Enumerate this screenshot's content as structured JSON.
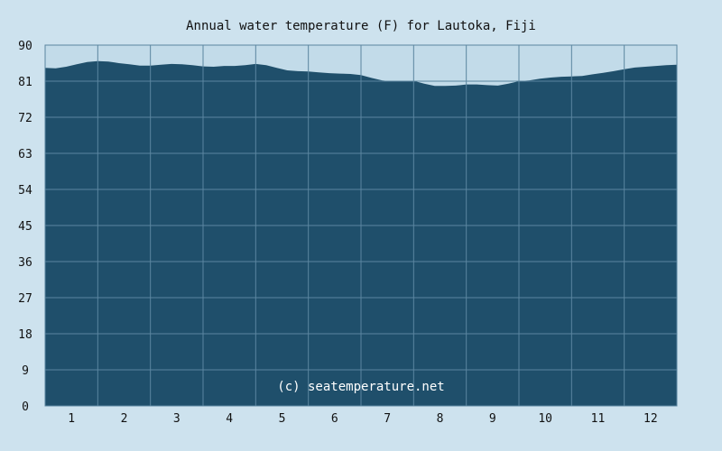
{
  "chart_data": {
    "type": "area",
    "title": "Annual water temperature (F) for Lautoka, Fiji",
    "watermark": "(c) seatemperature.net",
    "categories": [
      "1",
      "2",
      "3",
      "4",
      "5",
      "6",
      "7",
      "8",
      "9",
      "10",
      "11",
      "12"
    ],
    "yticks": [
      "0",
      "9",
      "18",
      "27",
      "36",
      "45",
      "54",
      "63",
      "72",
      "81",
      "90"
    ],
    "ylim": [
      0,
      90
    ],
    "xlim": [
      0.5,
      12.5
    ],
    "grid": true,
    "series": [
      {
        "values": [
          [
            0.5,
            84.3
          ],
          [
            0.7,
            84.2
          ],
          [
            0.9,
            84.6
          ],
          [
            1.1,
            85.2
          ],
          [
            1.3,
            85.8
          ],
          [
            1.5,
            86.0
          ],
          [
            1.7,
            85.9
          ],
          [
            1.9,
            85.5
          ],
          [
            2.1,
            85.2
          ],
          [
            2.3,
            84.9
          ],
          [
            2.5,
            84.9
          ],
          [
            2.7,
            85.1
          ],
          [
            2.9,
            85.3
          ],
          [
            3.1,
            85.2
          ],
          [
            3.3,
            85.0
          ],
          [
            3.5,
            84.7
          ],
          [
            3.7,
            84.6
          ],
          [
            3.9,
            84.8
          ],
          [
            4.1,
            84.8
          ],
          [
            4.3,
            85.0
          ],
          [
            4.5,
            85.3
          ],
          [
            4.7,
            85.0
          ],
          [
            4.9,
            84.3
          ],
          [
            5.1,
            83.7
          ],
          [
            5.3,
            83.5
          ],
          [
            5.5,
            83.4
          ],
          [
            5.7,
            83.2
          ],
          [
            5.9,
            83.0
          ],
          [
            6.1,
            82.9
          ],
          [
            6.3,
            82.8
          ],
          [
            6.5,
            82.5
          ],
          [
            6.7,
            81.8
          ],
          [
            6.9,
            81.2
          ],
          [
            7.1,
            80.9
          ],
          [
            7.3,
            81.0
          ],
          [
            7.5,
            81.1
          ],
          [
            7.7,
            80.4
          ],
          [
            7.9,
            79.8
          ],
          [
            8.1,
            79.8
          ],
          [
            8.3,
            79.9
          ],
          [
            8.5,
            80.2
          ],
          [
            8.7,
            80.2
          ],
          [
            8.9,
            80.0
          ],
          [
            9.1,
            79.9
          ],
          [
            9.3,
            80.4
          ],
          [
            9.5,
            81.0
          ],
          [
            9.7,
            81.2
          ],
          [
            9.9,
            81.6
          ],
          [
            10.1,
            81.9
          ],
          [
            10.3,
            82.1
          ],
          [
            10.5,
            82.2
          ],
          [
            10.7,
            82.3
          ],
          [
            10.9,
            82.7
          ],
          [
            11.1,
            83.1
          ],
          [
            11.3,
            83.5
          ],
          [
            11.5,
            84.0
          ],
          [
            11.7,
            84.4
          ],
          [
            11.9,
            84.6
          ],
          [
            12.1,
            84.8
          ],
          [
            12.3,
            85.0
          ],
          [
            12.5,
            85.1
          ]
        ]
      }
    ],
    "colors": {
      "background": "#cde2ee",
      "plot_background": "#c2dbe9",
      "fill": "#1f4f6b",
      "gridline": "#5b86a0",
      "axis": "#111111"
    }
  }
}
